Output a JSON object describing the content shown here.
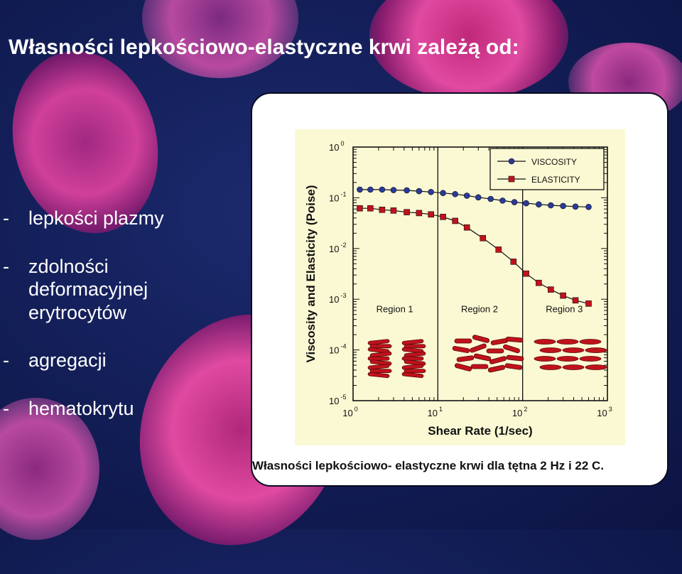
{
  "title": "Własności lepkościowo-elastyczne krwi zależą od:",
  "bullets": [
    {
      "dash": "-",
      "lines": [
        "lepkości plazmy"
      ]
    },
    {
      "dash": "-",
      "lines": [
        "zdolności",
        "deformacyjnej",
        "erytrocytów"
      ]
    },
    {
      "dash": "-",
      "lines": [
        "agregacji"
      ]
    },
    {
      "dash": "-",
      "lines": [
        "hematokrytu"
      ]
    }
  ],
  "caption": "Własności lepkościowo- elastyczne krwi dla tętna 2 Hz i 22 C.",
  "colors": {
    "background": "#121d55",
    "chart_bg": "#fbf9d3",
    "viscosity": "#2a3a9a",
    "elasticity": "#c0121b",
    "cell": "#c0121b"
  },
  "chart_data": {
    "type": "line",
    "xscale": "log",
    "yscale": "log",
    "xlim": [
      1,
      1000
    ],
    "ylim": [
      1e-05,
      1
    ],
    "xlabel": "Shear Rate (1/sec)",
    "ylabel": "Viscosity and Elasticity (Poise)",
    "xticks": [
      {
        "base": "10",
        "exp": "0",
        "value": 1
      },
      {
        "base": "10",
        "exp": "1",
        "value": 10
      },
      {
        "base": "10",
        "exp": "2",
        "value": 100
      },
      {
        "base": "10",
        "exp": "3",
        "value": 1000
      }
    ],
    "yticks": [
      {
        "base": "10",
        "exp": "-5",
        "value": 1e-05
      },
      {
        "base": "10",
        "exp": "-4",
        "value": 0.0001
      },
      {
        "base": "10",
        "exp": "-3",
        "value": 0.001
      },
      {
        "base": "10",
        "exp": "-2",
        "value": 0.01
      },
      {
        "base": "10",
        "exp": "-1",
        "value": 0.1
      },
      {
        "base": "10",
        "exp": "0",
        "value": 1
      }
    ],
    "grid": "minor ticks on all sides; vertical dividers at 10 and 100",
    "legend": "top-right",
    "series": [
      {
        "name": "VISCOSITY",
        "marker": "circle",
        "color": "#2a3a9a",
        "x": [
          1.2,
          1.6,
          2.2,
          3.0,
          4.3,
          6.0,
          8.3,
          11.5,
          16,
          22,
          30,
          42,
          58,
          80,
          110,
          155,
          215,
          300,
          420,
          600
        ],
        "y": [
          0.145,
          0.145,
          0.145,
          0.142,
          0.14,
          0.135,
          0.13,
          0.124,
          0.118,
          0.11,
          0.102,
          0.095,
          0.088,
          0.082,
          0.078,
          0.074,
          0.071,
          0.069,
          0.067,
          0.066
        ]
      },
      {
        "name": "ELASTICITY",
        "marker": "square",
        "color": "#c0121b",
        "x": [
          1.2,
          1.6,
          2.2,
          3.0,
          4.3,
          6.0,
          8.3,
          11.5,
          16,
          22,
          34,
          52,
          78,
          110,
          155,
          215,
          300,
          420,
          600
        ],
        "y": [
          0.062,
          0.062,
          0.058,
          0.056,
          0.052,
          0.05,
          0.047,
          0.042,
          0.035,
          0.026,
          0.016,
          0.0095,
          0.0055,
          0.0032,
          0.0021,
          0.00155,
          0.00118,
          0.00095,
          0.00082
        ]
      }
    ],
    "annotations": [
      {
        "text": "Region 1",
        "x": 3.1,
        "y": 0.00055
      },
      {
        "text": "Region 2",
        "x": 31,
        "y": 0.00055
      },
      {
        "text": "Region 3",
        "x": 310,
        "y": 0.00055
      }
    ]
  }
}
